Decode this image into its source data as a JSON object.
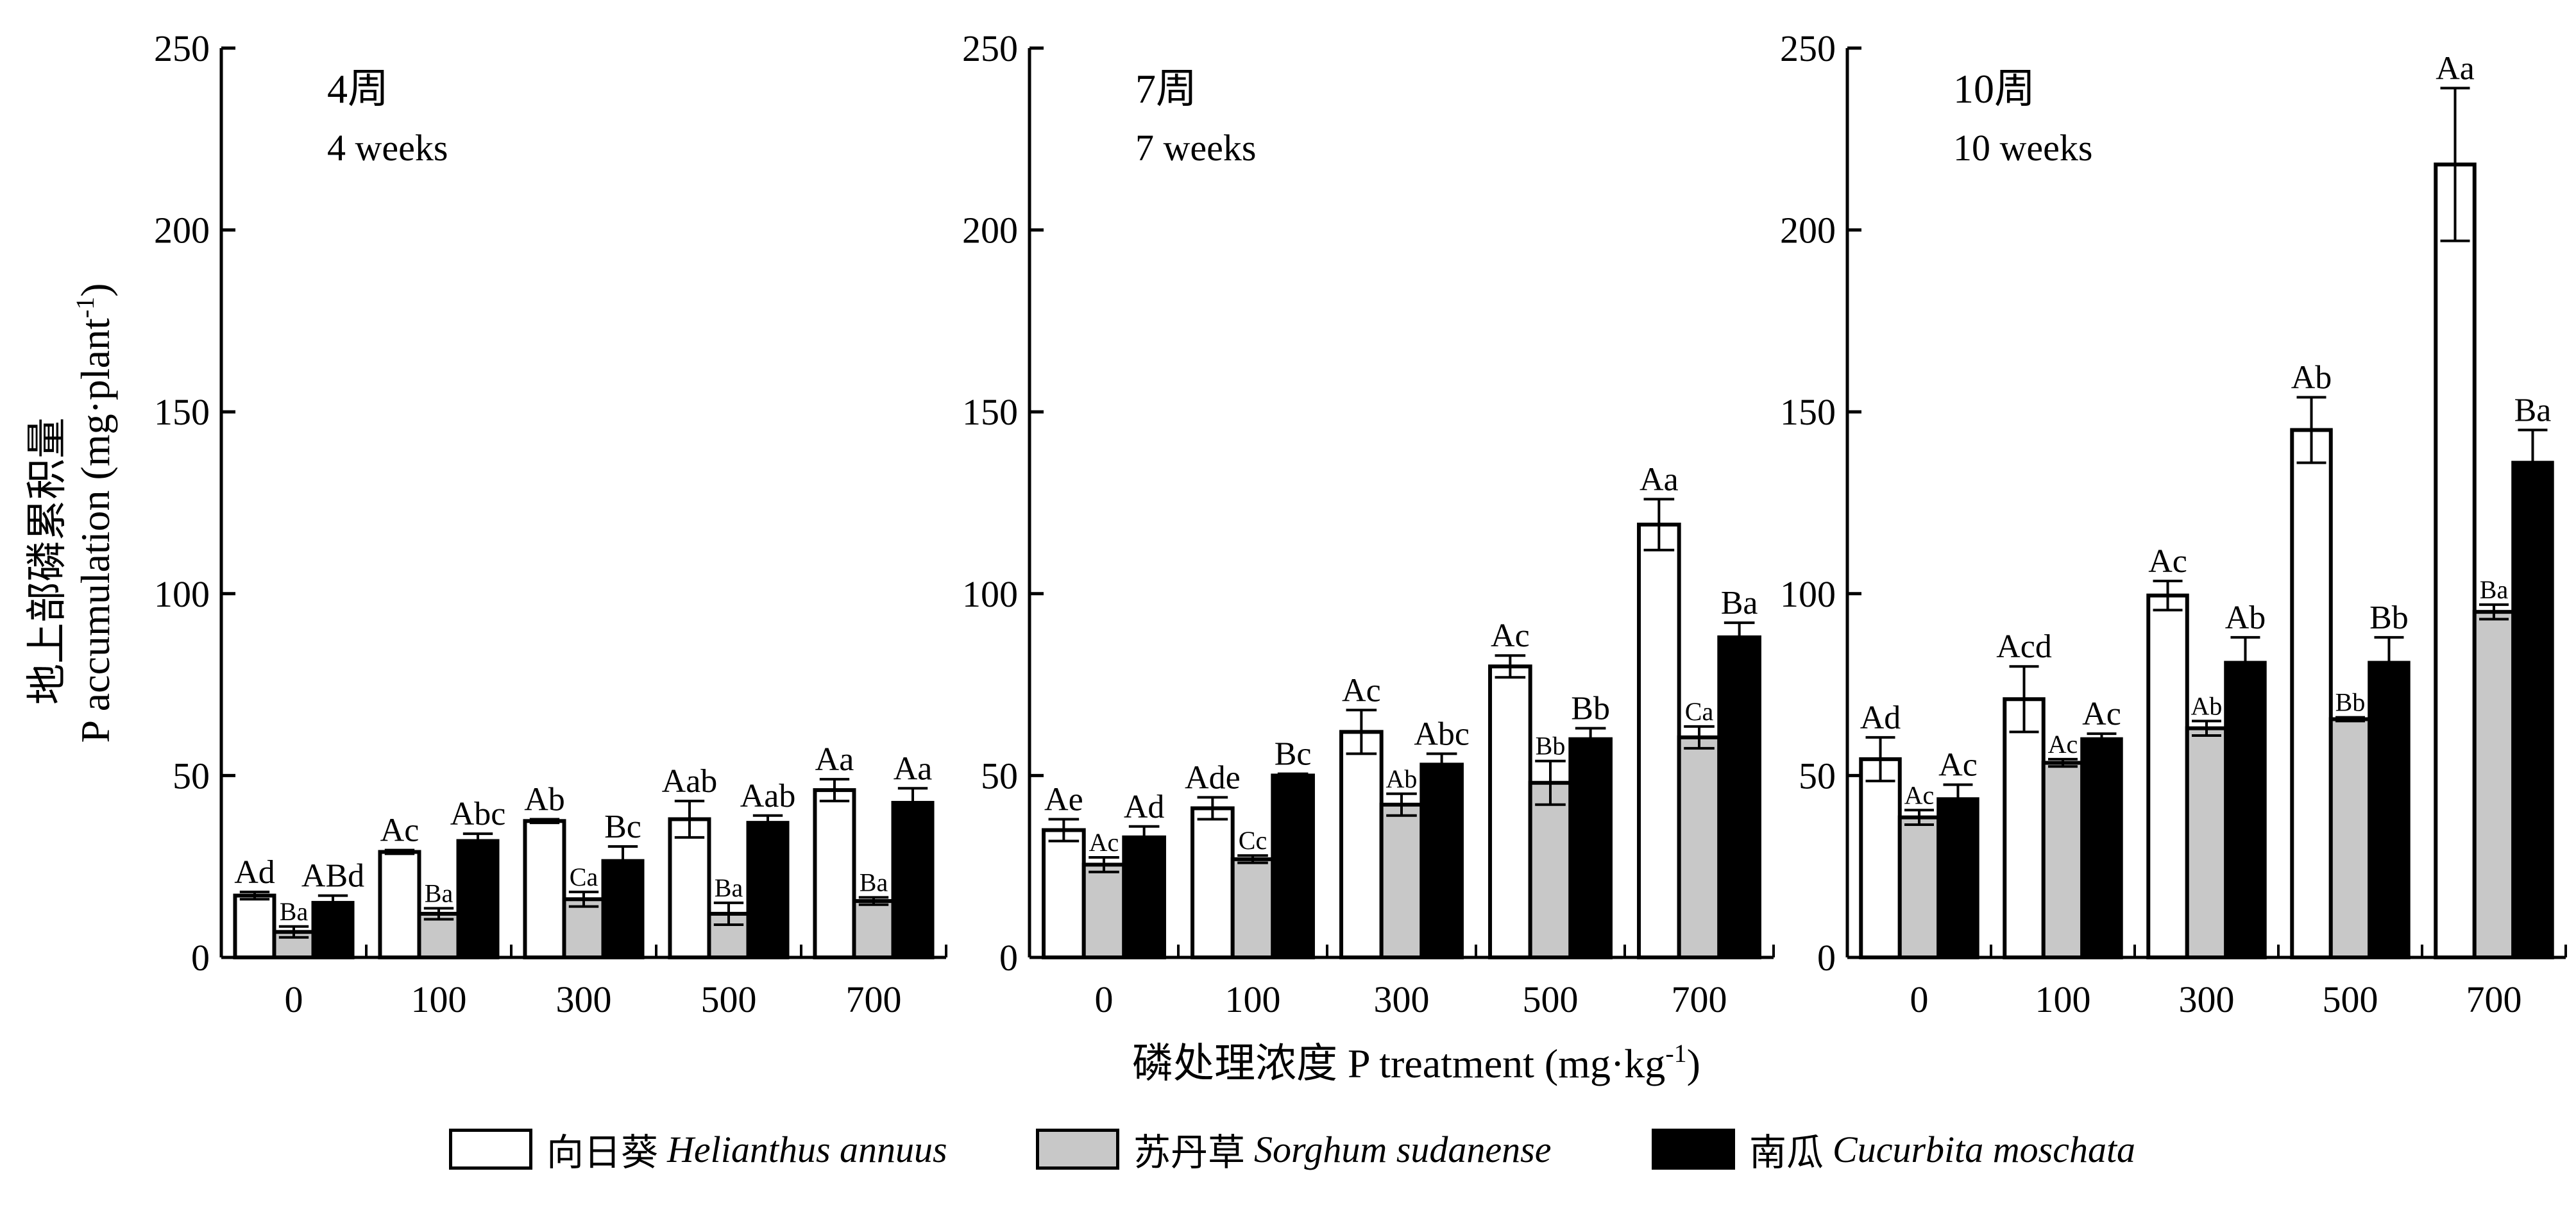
{
  "chart_data": {
    "type": "bar",
    "ylabel_zh": "地上部磷累积量",
    "ylabel_en": "P accumulation (mg·plant",
    "ylabel_en_sup": "-1",
    "ylabel_en_end": ")",
    "xlabel": "磷处理浓度 P treatment (mg·kg",
    "xlabel_sup": "-1",
    "xlabel_end": ")",
    "categories": [
      "0",
      "100",
      "300",
      "500",
      "700"
    ],
    "ylim": [
      0,
      250
    ],
    "yticks": [
      "0",
      "50",
      "100",
      "150",
      "200",
      "250"
    ],
    "legend": "bottom",
    "colors": {
      "Helianthus annuus": "#ffffff",
      "Sorghum sudanense": "#c8c8c8",
      "Cucurbita moschata": "#000000"
    },
    "series_legend": [
      {
        "zh": "向日葵",
        "sci": "Helianthus annuus",
        "color": "#ffffff"
      },
      {
        "zh": "苏丹草",
        "sci": "Sorghum sudanense",
        "color": "#c8c8c8"
      },
      {
        "zh": "南瓜",
        "sci": "Cucurbita moschata",
        "color": "#000000"
      }
    ],
    "panels": [
      {
        "title_zh": "4周",
        "title_en": "4 weeks",
        "series": [
          {
            "name": "向日葵 Helianthus annuus",
            "values": [
              17,
              29,
              37.5,
              38,
              46
            ],
            "errors": [
              1,
              0.5,
              0.5,
              5,
              3
            ],
            "labels": [
              "Ad",
              "Ac",
              "Ab",
              "Aab",
              "Aa"
            ]
          },
          {
            "name": "苏丹草 Sorghum sudanense",
            "values": [
              7,
              12,
              16,
              12,
              15.5
            ],
            "errors": [
              1.5,
              1.5,
              2,
              3,
              1
            ],
            "labels": [
              "Ba",
              "Ba",
              "Ca",
              "Ba",
              "Ba"
            ]
          },
          {
            "name": "南瓜 Cucurbita moschata",
            "values": [
              15,
              32,
              26.5,
              37,
              42.5
            ],
            "errors": [
              2,
              2,
              4,
              2,
              4
            ],
            "labels": [
              "ABd",
              "Abc",
              "Bc",
              "Aab",
              "Aa"
            ]
          }
        ]
      },
      {
        "title_zh": "7周",
        "title_en": "7 weeks",
        "series": [
          {
            "name": "向日葵 Helianthus annuus",
            "values": [
              35,
              41,
              62,
              80,
              119
            ],
            "errors": [
              3,
              3,
              6,
              3,
              7
            ],
            "labels": [
              "Ae",
              "Ade",
              "Ac",
              "Ac",
              "Aa"
            ]
          },
          {
            "name": "苏丹草 Sorghum sudanense",
            "values": [
              25.5,
              27,
              42,
              48,
              60.5
            ],
            "errors": [
              2,
              1,
              3,
              6,
              3
            ],
            "labels": [
              "Ac",
              "Cc",
              "Ab",
              "Bb",
              "Ca"
            ]
          },
          {
            "name": "南瓜 Cucurbita moschata",
            "values": [
              33,
              50,
              53,
              60,
              88
            ],
            "errors": [
              3,
              0.5,
              3,
              3,
              4
            ],
            "labels": [
              "Ad",
              "Bc",
              "Abc",
              "Bb",
              "Ba"
            ]
          }
        ]
      },
      {
        "title_zh": "10周",
        "title_en": "10 weeks",
        "series": [
          {
            "name": "向日葵 Helianthus annuus",
            "values": [
              54.5,
              71,
              99.5,
              145,
              218
            ],
            "errors": [
              6,
              9,
              4,
              9,
              21
            ],
            "labels": [
              "Ad",
              "Acd",
              "Ac",
              "Ab",
              "Aa"
            ]
          },
          {
            "name": "苏丹草 Sorghum sudanense",
            "values": [
              38.5,
              53.5,
              63,
              65.5,
              95
            ],
            "errors": [
              2,
              1,
              2,
              0.5,
              2
            ],
            "labels": [
              "Ac",
              "Ac",
              "Ab",
              "Bb",
              "Ba"
            ]
          },
          {
            "name": "南瓜 Cucurbita moschata",
            "values": [
              43.5,
              60,
              81,
              81,
              136
            ],
            "errors": [
              4,
              1.5,
              7,
              7,
              9
            ],
            "labels": [
              "Ac",
              "Ac",
              "Ab",
              "Bb",
              "Ba"
            ]
          }
        ]
      }
    ]
  }
}
